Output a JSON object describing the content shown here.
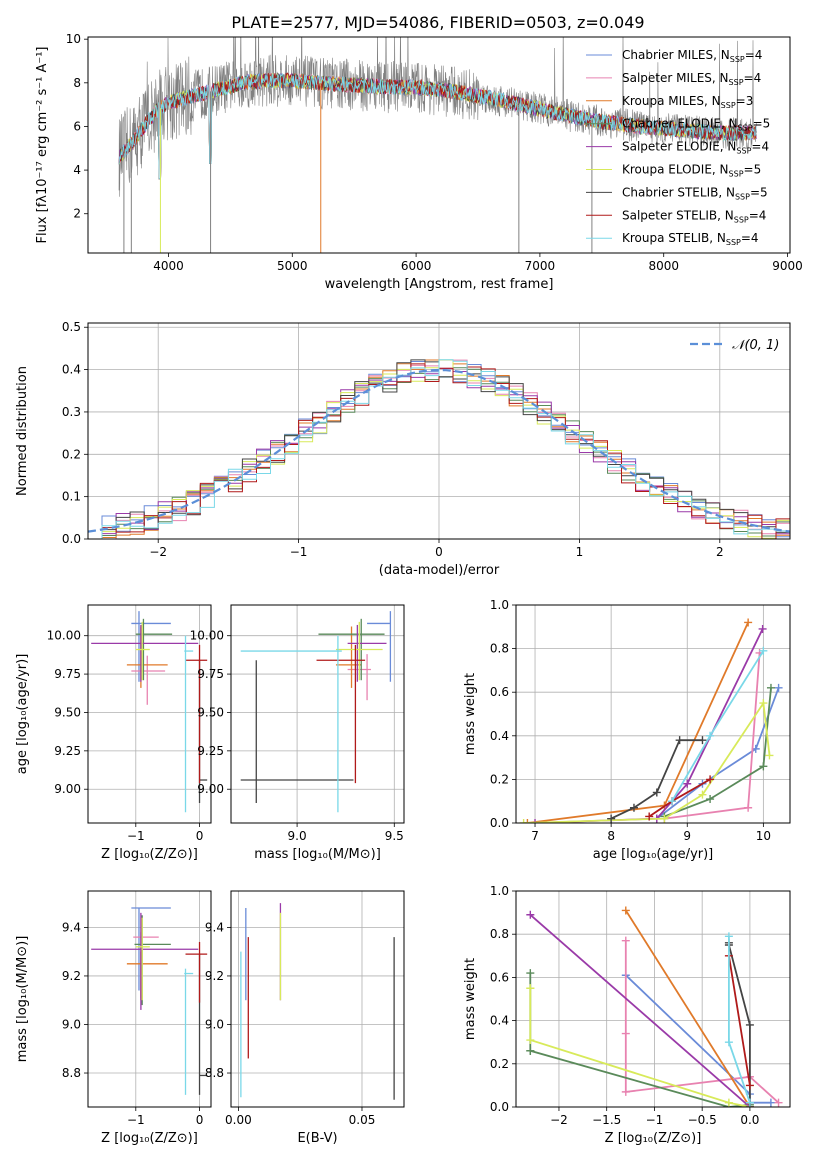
{
  "figure_title": "PLATE=2577, MJD=54086, FIBERID=0503, z=0.049",
  "models": [
    {
      "name": "Chabrier MILES",
      "n": "4",
      "color": "#6a8bd8"
    },
    {
      "name": "Salpeter MILES",
      "n": "4",
      "color": "#e882b0"
    },
    {
      "name": "Kroupa MILES",
      "n": "3",
      "color": "#e07a2a"
    },
    {
      "name": "Chabrier ELODIE",
      "n": "5",
      "color": "#5a8a5a"
    },
    {
      "name": "Salpeter ELODIE",
      "n": "4",
      "color": "#9a3aa8"
    },
    {
      "name": "Kroupa ELODIE",
      "n": "5",
      "color": "#d8ea5a"
    },
    {
      "name": "Chabrier STELIB",
      "n": "5",
      "color": "#444444"
    },
    {
      "name": "Salpeter STELIB",
      "n": "4",
      "color": "#b01a1a"
    },
    {
      "name": "Kroupa STELIB",
      "n": "4",
      "color": "#7ad8e8"
    }
  ],
  "chart_data": [
    {
      "id": "spectrum",
      "type": "line",
      "xlabel": "wavelength [Angstrom, rest frame]",
      "ylabel": "Flux [fλ10⁻¹⁷ erg cm⁻² s⁻¹ A⁻¹]",
      "xlim": [
        3350,
        9020
      ],
      "ylim": [
        0.2,
        10.1
      ],
      "xticks": [
        4000,
        5000,
        6000,
        7000,
        8000,
        9000
      ],
      "yticks": [
        2,
        4,
        6,
        8,
        10
      ],
      "legend_position": "top-right",
      "data_color": "#808080",
      "data_range": [
        3600,
        8750
      ],
      "continuum": [
        [
          3600,
          4.6
        ],
        [
          3700,
          5.2
        ],
        [
          3800,
          6.0
        ],
        [
          3900,
          6.7
        ],
        [
          4000,
          7.1
        ],
        [
          4200,
          7.4
        ],
        [
          4400,
          7.7
        ],
        [
          4600,
          8.0
        ],
        [
          4800,
          8.1
        ],
        [
          5000,
          8.1
        ],
        [
          5200,
          8.0
        ],
        [
          5500,
          7.9
        ],
        [
          5800,
          7.8
        ],
        [
          6000,
          7.8
        ],
        [
          6300,
          7.6
        ],
        [
          6600,
          7.3
        ],
        [
          7000,
          6.8
        ],
        [
          7400,
          6.3
        ],
        [
          7800,
          6.0
        ],
        [
          8200,
          5.8
        ],
        [
          8500,
          5.7
        ],
        [
          8750,
          5.7
        ]
      ],
      "model_range": [
        3600,
        8750
      ]
    },
    {
      "id": "residuals",
      "type": "step",
      "xlabel": "(data-model)/error",
      "ylabel": "Normed distribution",
      "xlim": [
        -2.5,
        2.5
      ],
      "ylim": [
        0,
        0.51
      ],
      "xticks": [
        -2,
        -1,
        0,
        1,
        2
      ],
      "yticks": [
        0.0,
        0.1,
        0.2,
        0.3,
        0.4,
        0.5
      ],
      "bin_width": 0.1,
      "gaussian_label": "𝒩(0, 1)",
      "gaussian_color": "#5b8fd8",
      "grid": true
    },
    {
      "id": "age_vs_Z",
      "type": "errorbar",
      "xlabel": "Z [log₁₀(Z/Z⊙)]",
      "ylabel": "age  [log₁₀(age/yr)]",
      "xlim": [
        -1.75,
        0.18
      ],
      "ylim": [
        8.78,
        10.2
      ],
      "xticks": [
        -1,
        0
      ],
      "yticks": [
        9.0,
        9.25,
        9.5,
        9.75,
        10.0
      ],
      "points": [
        {
          "x": -0.95,
          "y": 10.08,
          "xerr": [
            0.12,
            0.5
          ],
          "yerr": [
            0.38,
            0.08
          ],
          "color": "#6a8bd8"
        },
        {
          "x": -0.82,
          "y": 9.77,
          "xerr": [
            0.25,
            0.28
          ],
          "yerr": [
            0.22,
            0.1
          ],
          "color": "#e882b0"
        },
        {
          "x": -0.92,
          "y": 9.81,
          "xerr": [
            0.22,
            0.42
          ],
          "yerr": [
            0.15,
            0.25
          ],
          "color": "#e07a2a"
        },
        {
          "x": -0.88,
          "y": 10.01,
          "xerr": [
            0.12,
            0.45
          ],
          "yerr": [
            0.3,
            0.1
          ],
          "color": "#5a8a5a"
        },
        {
          "x": -0.92,
          "y": 9.95,
          "xerr": [
            0.78,
            0.9
          ],
          "yerr": [
            0.25,
            0.12
          ],
          "color": "#9a3aa8"
        },
        {
          "x": -0.9,
          "y": 9.91,
          "xerr": [
            0.1,
            0.12
          ],
          "yerr": [
            0.2,
            0.18
          ],
          "color": "#d8ea5a"
        },
        {
          "x": 0.0,
          "y": 9.06,
          "xerr": [
            0.0,
            0.12
          ],
          "yerr": [
            0.15,
            0.78
          ],
          "color": "#444444"
        },
        {
          "x": 0.0,
          "y": 9.84,
          "xerr": [
            0.22,
            0.12
          ],
          "yerr": [
            0.8,
            0.1
          ],
          "color": "#b01a1a"
        },
        {
          "x": -0.22,
          "y": 9.9,
          "xerr": [
            0.02,
            0.12
          ],
          "yerr": [
            1.05,
            0.1
          ],
          "color": "#7ad8e8"
        }
      ]
    },
    {
      "id": "age_vs_mass",
      "type": "errorbar",
      "xlabel": "mass [log₁₀(M/M⊙)]",
      "ylabel": "",
      "xlim": [
        8.66,
        9.55
      ],
      "ylim": [
        8.78,
        10.2
      ],
      "xticks": [
        9.0,
        9.5
      ],
      "yticks": [
        9.0,
        9.25,
        9.5,
        9.75,
        10.0
      ],
      "points": [
        {
          "x": 9.48,
          "y": 10.08,
          "xerr": [
            0.12,
            0.0
          ],
          "yerr": [
            0.38,
            0.08
          ],
          "color": "#6a8bd8"
        },
        {
          "x": 9.36,
          "y": 9.78,
          "xerr": [
            0.1,
            0.02
          ],
          "yerr": [
            0.2,
            0.1
          ],
          "color": "#e882b0"
        },
        {
          "x": 9.28,
          "y": 9.81,
          "xerr": [
            0.08,
            0.05
          ],
          "yerr": [
            0.15,
            0.25
          ],
          "color": "#e07a2a"
        },
        {
          "x": 9.33,
          "y": 10.01,
          "xerr": [
            0.22,
            0.12
          ],
          "yerr": [
            0.3,
            0.1
          ],
          "color": "#5a8a5a"
        },
        {
          "x": 9.31,
          "y": 9.95,
          "xerr": [
            0.05,
            0.15
          ],
          "yerr": [
            0.25,
            0.12
          ],
          "color": "#9a3aa8"
        },
        {
          "x": 9.32,
          "y": 9.91,
          "xerr": [
            0.12,
            0.12
          ],
          "yerr": [
            0.2,
            0.18
          ],
          "color": "#d8ea5a"
        },
        {
          "x": 8.79,
          "y": 9.06,
          "xerr": [
            0.08,
            0.5
          ],
          "yerr": [
            0.15,
            0.78
          ],
          "color": "#444444"
        },
        {
          "x": 9.3,
          "y": 9.84,
          "xerr": [
            0.2,
            0.05
          ],
          "yerr": [
            0.8,
            0.1
          ],
          "color": "#b01a1a"
        },
        {
          "x": 9.21,
          "y": 9.9,
          "xerr": [
            0.5,
            0.02
          ],
          "yerr": [
            1.05,
            0.1
          ],
          "color": "#7ad8e8"
        }
      ]
    },
    {
      "id": "mass_weight_vs_age",
      "type": "line",
      "xlabel": "age  [log₁₀(age/yr)]",
      "ylabel": "mass weight",
      "xlim": [
        6.75,
        10.35
      ],
      "ylim": [
        0,
        1.0
      ],
      "xticks": [
        7,
        8,
        9,
        10
      ],
      "yticks": [
        0.0,
        0.2,
        0.4,
        0.6,
        0.8,
        1.0
      ],
      "series": [
        {
          "color": "#6a8bd8",
          "x": [
            8.6,
            9.2,
            9.9,
            10.2
          ],
          "y": [
            0.02,
            0.18,
            0.34,
            0.62
          ]
        },
        {
          "color": "#e882b0",
          "x": [
            8.7,
            9.8,
            9.95
          ],
          "y": [
            0.02,
            0.07,
            0.78
          ]
        },
        {
          "color": "#e07a2a",
          "x": [
            6.9,
            8.7,
            9.8
          ],
          "y": [
            0.0,
            0.08,
            0.92
          ]
        },
        {
          "color": "#5a8a5a",
          "x": [
            8.7,
            9.3,
            10.0,
            10.1
          ],
          "y": [
            0.03,
            0.11,
            0.26,
            0.62
          ]
        },
        {
          "color": "#9a3aa8",
          "x": [
            7.0,
            8.6,
            9.0,
            9.99
          ],
          "y": [
            0.0,
            0.02,
            0.18,
            0.89
          ]
        },
        {
          "color": "#d8ea5a",
          "x": [
            6.85,
            8.7,
            9.2,
            10.0,
            10.08
          ],
          "y": [
            0.0,
            0.02,
            0.13,
            0.55,
            0.31
          ]
        },
        {
          "color": "#444444",
          "x": [
            8.0,
            8.3,
            8.6,
            8.9,
            9.2
          ],
          "y": [
            0.02,
            0.07,
            0.14,
            0.38,
            0.38
          ]
        },
        {
          "color": "#b01a1a",
          "x": [
            8.5,
            8.8,
            9.3
          ],
          "y": [
            0.03,
            0.1,
            0.2
          ]
        },
        {
          "color": "#7ad8e8",
          "x": [
            8.8,
            9.3,
            10.0
          ],
          "y": [
            0.1,
            0.4,
            0.79
          ]
        }
      ]
    },
    {
      "id": "mass_vs_Z",
      "type": "errorbar",
      "xlabel": "Z [log₁₀(Z/Z⊙)]",
      "ylabel": "mass [log₁₀(M/M⊙)]",
      "xlim": [
        -1.75,
        0.18
      ],
      "ylim": [
        8.66,
        9.55
      ],
      "xticks": [
        -1,
        0
      ],
      "yticks": [
        8.8,
        9.0,
        9.2,
        9.4
      ],
      "points": [
        {
          "x": -0.95,
          "y": 9.48,
          "xerr": [
            0.12,
            0.5
          ],
          "yerr": [
            0.34,
            0.0
          ],
          "color": "#6a8bd8"
        },
        {
          "x": -0.92,
          "y": 9.36,
          "xerr": [
            0.12,
            0.28
          ],
          "yerr": [
            0.25,
            0.02
          ],
          "color": "#e882b0"
        },
        {
          "x": -0.92,
          "y": 9.25,
          "xerr": [
            0.22,
            0.42
          ],
          "yerr": [
            0.15,
            0.05
          ],
          "color": "#e07a2a"
        },
        {
          "x": -0.9,
          "y": 9.33,
          "xerr": [
            0.12,
            0.45
          ],
          "yerr": [
            0.25,
            0.12
          ],
          "color": "#5a8a5a"
        },
        {
          "x": -0.92,
          "y": 9.31,
          "xerr": [
            0.78,
            0.9
          ],
          "yerr": [
            0.25,
            0.15
          ],
          "color": "#9a3aa8"
        },
        {
          "x": -0.9,
          "y": 9.32,
          "xerr": [
            0.1,
            0.12
          ],
          "yerr": [
            0.22,
            0.12
          ],
          "color": "#d8ea5a"
        },
        {
          "x": 0.0,
          "y": 8.79,
          "xerr": [
            0.0,
            0.12
          ],
          "yerr": [
            0.08,
            0.5
          ],
          "color": "#444444"
        },
        {
          "x": 0.0,
          "y": 9.29,
          "xerr": [
            0.22,
            0.12
          ],
          "yerr": [
            0.2,
            0.05
          ],
          "color": "#b01a1a"
        },
        {
          "x": -0.22,
          "y": 9.21,
          "xerr": [
            0.02,
            0.12
          ],
          "yerr": [
            0.5,
            0.02
          ],
          "color": "#7ad8e8"
        }
      ]
    },
    {
      "id": "mass_vs_ebv",
      "type": "errorbar",
      "xlabel": "E(B-V)",
      "ylabel": "",
      "xlim": [
        -0.003,
        0.067
      ],
      "ylim": [
        8.66,
        9.55
      ],
      "xticks": [
        0.0,
        0.05
      ],
      "yticks": [
        8.8,
        9.0,
        9.2,
        9.4
      ],
      "points": [
        {
          "x": 0.003,
          "y": 9.3,
          "xerr": [
            0,
            0
          ],
          "yerr": [
            0.2,
            0.18
          ],
          "color": "#6a8bd8"
        },
        {
          "x": 0.017,
          "y": 9.3,
          "xerr": [
            0,
            0
          ],
          "yerr": [
            0.2,
            0.2
          ],
          "color": "#9a3aa8"
        },
        {
          "x": 0.017,
          "y": 9.28,
          "xerr": [
            0,
            0
          ],
          "yerr": [
            0.18,
            0.18
          ],
          "color": "#d8ea5a"
        },
        {
          "x": 0.004,
          "y": 9.1,
          "xerr": [
            0,
            0
          ],
          "yerr": [
            0.24,
            0.26
          ],
          "color": "#b01a1a"
        },
        {
          "x": 0.063,
          "y": 9.02,
          "xerr": [
            0,
            0
          ],
          "yerr": [
            0.33,
            0.34
          ],
          "color": "#444444"
        },
        {
          "x": 0.001,
          "y": 9.0,
          "xerr": [
            0,
            0
          ],
          "yerr": [
            0.3,
            0.3
          ],
          "color": "#7ad8e8"
        }
      ]
    },
    {
      "id": "mass_weight_vs_Z",
      "type": "line",
      "xlabel": "Z [log₁₀(Z/Z⊙)]",
      "ylabel": "mass weight",
      "xlim": [
        -2.45,
        0.42
      ],
      "ylim": [
        0,
        1.0
      ],
      "xticks": [
        -2.0,
        -1.5,
        -1.0,
        -0.5,
        0.0
      ],
      "yticks": [
        0.0,
        0.2,
        0.4,
        0.6,
        0.8,
        1.0
      ],
      "series": [
        {
          "color": "#6a8bd8",
          "x": [
            -1.3,
            0.0,
            0.0,
            0.22
          ],
          "y": [
            0.61,
            0.06,
            0.02,
            0.02
          ]
        },
        {
          "color": "#e882b0",
          "x": [
            -1.3,
            -1.3,
            -1.3,
            0.0,
            0.3
          ],
          "y": [
            0.77,
            0.34,
            0.07,
            0.14,
            0.02
          ]
        },
        {
          "color": "#e07a2a",
          "x": [
            -1.3,
            0.0
          ],
          "y": [
            0.91,
            0.0
          ]
        },
        {
          "color": "#5a8a5a",
          "x": [
            -2.3,
            -2.3,
            -2.3,
            -0.22,
            0.0
          ],
          "y": [
            0.62,
            0.26,
            0.26,
            0.0,
            0.01
          ]
        },
        {
          "color": "#9a3aa8",
          "x": [
            -2.3,
            0.0
          ],
          "y": [
            0.89,
            0.0
          ]
        },
        {
          "color": "#d8ea5a",
          "x": [
            -2.3,
            -2.3,
            -2.3,
            -0.22,
            0.0
          ],
          "y": [
            0.55,
            0.55,
            0.31,
            0.02,
            0.0
          ]
        },
        {
          "color": "#444444",
          "x": [
            -0.22,
            -0.22,
            0.0,
            0.0
          ],
          "y": [
            0.76,
            0.75,
            0.38,
            0.0
          ]
        },
        {
          "color": "#b01a1a",
          "x": [
            -0.22,
            0.0
          ],
          "y": [
            0.7,
            0.1
          ]
        },
        {
          "color": "#7ad8e8",
          "x": [
            -0.22,
            -0.22,
            0.0
          ],
          "y": [
            0.79,
            0.3,
            0.02
          ]
        }
      ]
    }
  ]
}
